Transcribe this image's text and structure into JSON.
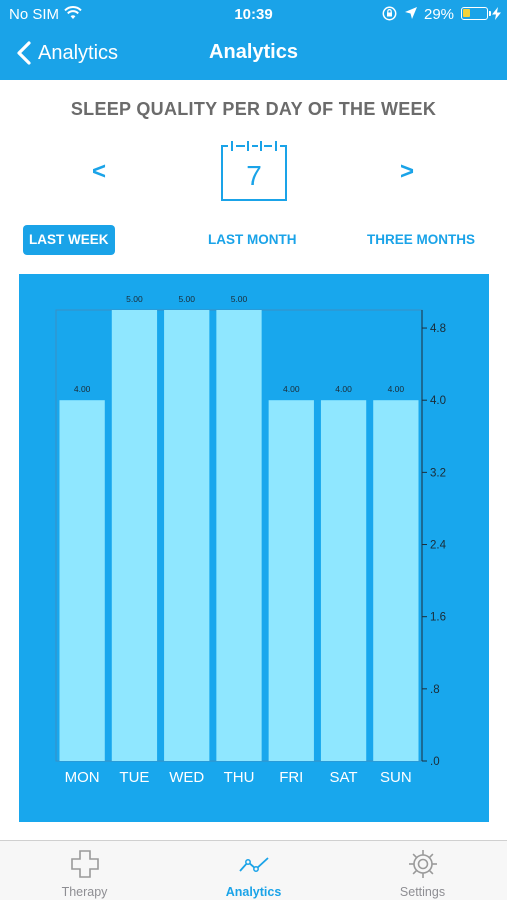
{
  "status_bar": {
    "carrier": "No SIM",
    "time": "10:39",
    "battery": "29%",
    "battery_level": 0.29,
    "icons": [
      "wifi-icon",
      "rotation-lock-icon",
      "location-arrow-icon",
      "battery-icon",
      "charging-bolt-icon"
    ]
  },
  "nav": {
    "back_label": "Analytics",
    "title": "Analytics"
  },
  "heading": "SLEEP QUALITY PER DAY OF THE WEEK",
  "date_picker": {
    "prev": "<",
    "next": ">",
    "day": "7"
  },
  "ranges": [
    {
      "label": "LAST WEEK",
      "active": true
    },
    {
      "label": "LAST MONTH",
      "active": false
    },
    {
      "label": "THREE MONTHS",
      "active": false
    }
  ],
  "colors": {
    "accent": "#1aa3e8",
    "chart_background": "#18a7ed",
    "bar": "#8fe7ff"
  },
  "chart_data": {
    "type": "bar",
    "categories": [
      "MON",
      "TUE",
      "WED",
      "THU",
      "FRI",
      "SAT",
      "SUN"
    ],
    "values": [
      4,
      5,
      5,
      5,
      4,
      4,
      4
    ],
    "data_labels": [
      "4.00",
      "5.00",
      "5.00",
      "5.00",
      "4.00",
      "4.00",
      "4.00"
    ],
    "yticks": [
      {
        "value": 0,
        "label": ".0"
      },
      {
        "value": 0.8,
        "label": ".8"
      },
      {
        "value": 1.6,
        "label": "1.6"
      },
      {
        "value": 2.4,
        "label": "2.4"
      },
      {
        "value": 3.2,
        "label": "3.2"
      },
      {
        "value": 4.0,
        "label": "4.0"
      },
      {
        "value": 4.8,
        "label": "4.8"
      }
    ],
    "ylim": [
      0,
      5
    ],
    "y_axis_position": "right",
    "grid": false,
    "legend": "none"
  },
  "tabs": [
    {
      "label": "Therapy",
      "icon": "cross-icon",
      "active": false
    },
    {
      "label": "Analytics",
      "icon": "line-chart-icon",
      "active": true
    },
    {
      "label": "Settings",
      "icon": "gear-icon",
      "active": false
    }
  ]
}
